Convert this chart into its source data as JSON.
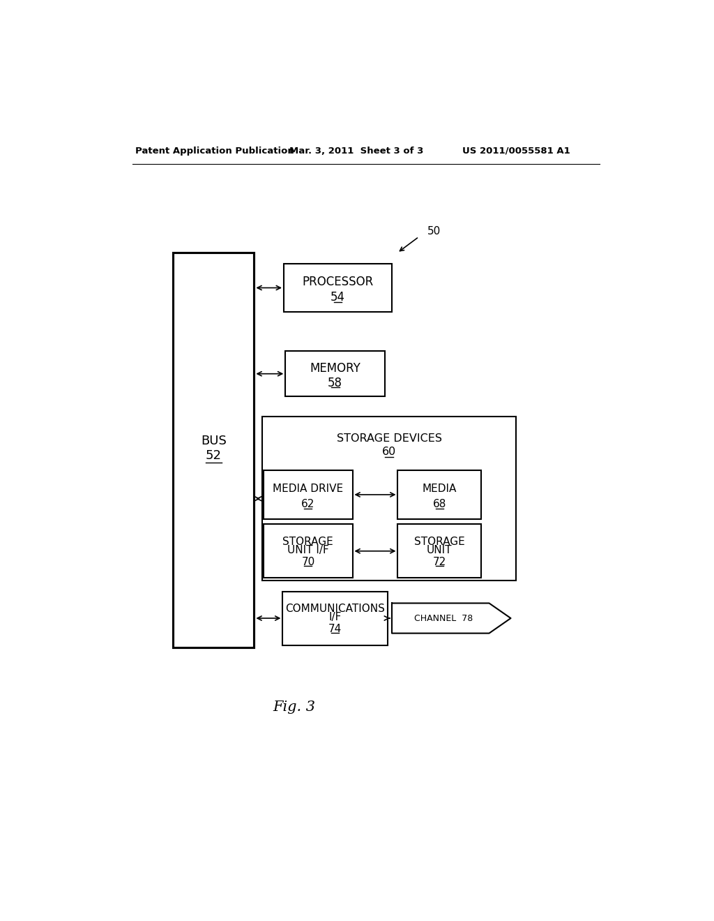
{
  "bg_color": "#ffffff",
  "header_left": "Patent Application Publication",
  "header_mid": "Mar. 3, 2011  Sheet 3 of 3",
  "header_right": "US 2011/0055581 A1",
  "fig_label": "Fig. 3",
  "ref_50": "50",
  "bus_label": "BUS",
  "bus_num": "52",
  "processor_label": "PROCESSOR",
  "processor_num": "54",
  "memory_label": "MEMORY",
  "memory_num": "58",
  "storage_devices_label": "STORAGE DEVICES",
  "storage_devices_num": "60",
  "media_drive_label": "MEDIA DRIVE",
  "media_drive_num": "62",
  "media_label": "MEDIA",
  "media_num": "68",
  "storage_unit_if_line1": "STORAGE",
  "storage_unit_if_line2": "UNIT I/F",
  "storage_unit_if_num": "70",
  "storage_unit_line1": "STORAGE",
  "storage_unit_line2": "UNIT",
  "storage_unit_num": "72",
  "comms_line1": "COMMUNICATIONS",
  "comms_line2": "I/F",
  "comms_num": "74",
  "channel_label": "CHANNEL  78",
  "box_color": "#ffffff",
  "box_edge": "#000000",
  "text_color": "#000000",
  "linewidth": 1.5
}
